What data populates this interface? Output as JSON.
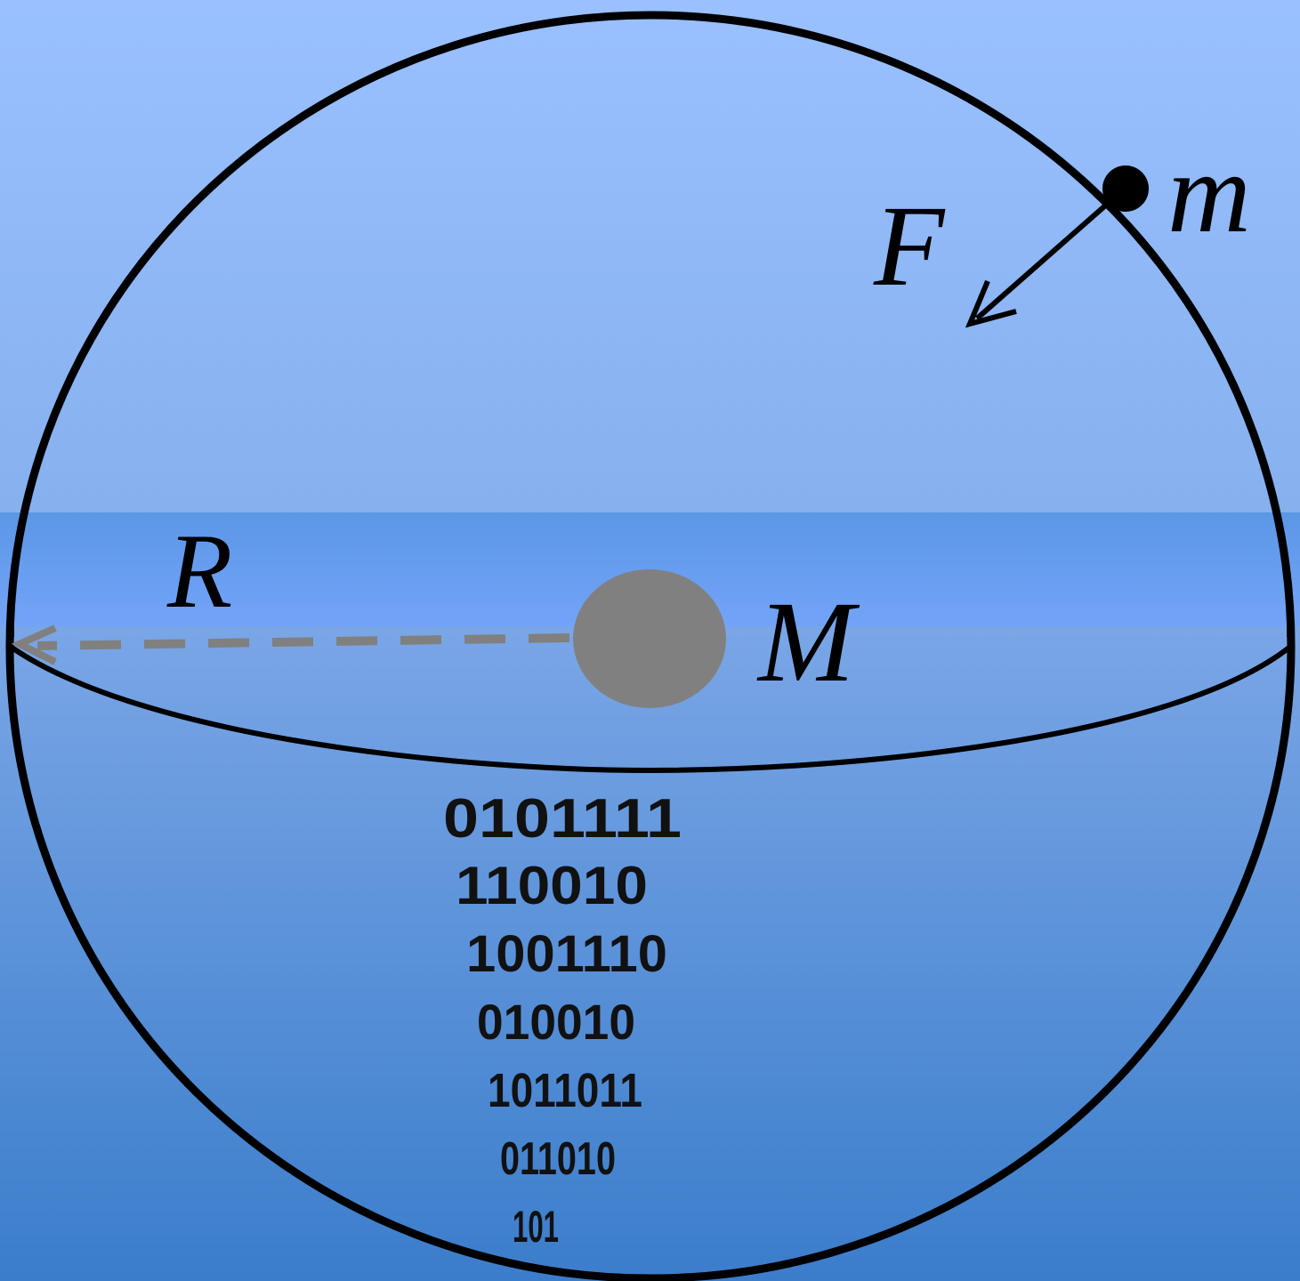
{
  "labels": {
    "force": "F",
    "small_mass": "m",
    "radius": "R",
    "big_mass": "M"
  },
  "binary_lines": [
    "0101111",
    "110010",
    "1001110",
    "010010",
    "1011011",
    "011010",
    "101"
  ],
  "colors": {
    "background_top": "#99bffd",
    "background_mid": "#88b1ef",
    "band": "#5f9be8",
    "band_highlight": "#75a5fa",
    "background_bottom": "#3d7fcb",
    "outline": "#000000",
    "central_mass": "#808080",
    "radius_line": "#808080"
  }
}
